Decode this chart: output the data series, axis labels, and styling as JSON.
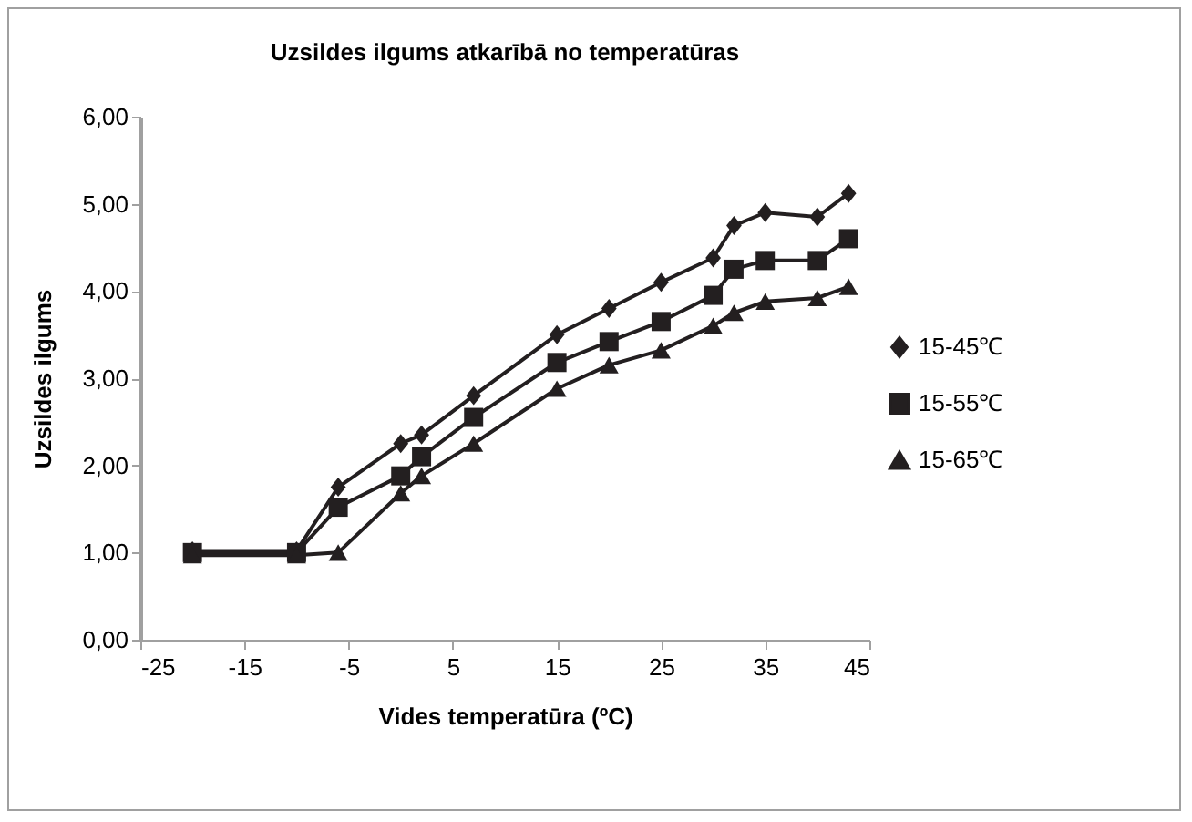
{
  "chart_data": {
    "type": "line",
    "title": "Uzsildes ilgums atkarībā no temperatūras",
    "xlabel": "Vides temperatūra (ºC)",
    "ylabel": "Uzsildes ilgums",
    "x": [
      -20,
      -10,
      -6,
      0,
      2,
      7,
      15,
      20,
      25,
      30,
      32,
      35,
      40,
      43
    ],
    "series": [
      {
        "name": "15-45℃",
        "color": "#231f20",
        "marker": "diamond",
        "values": [
          1.02,
          1.02,
          1.75,
          2.25,
          2.35,
          2.8,
          3.5,
          3.8,
          4.1,
          4.38,
          4.75,
          4.9,
          4.85,
          5.12
        ]
      },
      {
        "name": "15-55℃",
        "color": "#231f20",
        "marker": "square",
        "values": [
          1.0,
          1.0,
          1.52,
          1.88,
          2.1,
          2.55,
          3.18,
          3.42,
          3.65,
          3.95,
          4.25,
          4.35,
          4.35,
          4.6
        ]
      },
      {
        "name": "15-65℃",
        "color": "#231f20",
        "marker": "triangle",
        "values": [
          0.97,
          0.97,
          1.0,
          1.68,
          1.88,
          2.25,
          2.88,
          3.15,
          3.32,
          3.6,
          3.75,
          3.88,
          3.92,
          4.05
        ]
      }
    ],
    "xlim": [
      -25,
      45
    ],
    "xticks": [
      -25,
      -15,
      -5,
      5,
      15,
      25,
      35,
      45
    ],
    "ylim": [
      0,
      6
    ],
    "yticks": [
      {
        "value": 0,
        "label": "0,00"
      },
      {
        "value": 1,
        "label": "1,00"
      },
      {
        "value": 2,
        "label": "2,00"
      },
      {
        "value": 3,
        "label": "3,00"
      },
      {
        "value": 4,
        "label": "4,00"
      },
      {
        "value": 5,
        "label": "5,00"
      },
      {
        "value": 6,
        "label": "6,00"
      }
    ],
    "grid": false,
    "legend": "right",
    "line_style": "solid"
  }
}
